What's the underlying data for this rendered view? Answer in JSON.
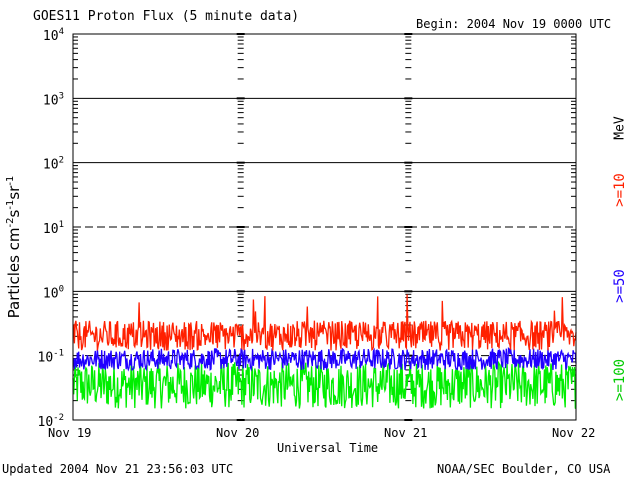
{
  "chart_data": {
    "type": "line",
    "title": "GOES11 Proton Flux (5 minute data)",
    "begin_label": "Begin: 2004 Nov 19 0000 UTC",
    "xlabel": "Universal Time",
    "ylabel_main": "Particles cm",
    "ylabel_sup1": "-2",
    "ylabel_mid1": "s",
    "ylabel_sup2": "-1",
    "ylabel_mid2": "sr",
    "ylabel_sup3": "-1",
    "x_ticks": [
      "Nov 19",
      "Nov 20",
      "Nov 21",
      "Nov 22"
    ],
    "xlim_days": [
      0,
      3
    ],
    "ylim": [
      0.01,
      10000
    ],
    "yscale": "log",
    "y_ticks": [
      {
        "base": "10",
        "exp": "-2"
      },
      {
        "base": "10",
        "exp": "-1"
      },
      {
        "base": "10",
        "exp": "0"
      },
      {
        "base": "10",
        "exp": "1"
      },
      {
        "base": "10",
        "exp": "2"
      },
      {
        "base": "10",
        "exp": "3"
      },
      {
        "base": "10",
        "exp": "4"
      }
    ],
    "unit": "MeV",
    "series": [
      {
        "name": ">=10",
        "color": "#ff2000",
        "level_min": 0.12,
        "level_max": 0.35,
        "peak": 0.9
      },
      {
        "name": ">=50",
        "color": "#2000ff",
        "level_min": 0.06,
        "level_max": 0.13,
        "peak": 0.16
      },
      {
        "name": ">=100",
        "color": "#00ee00",
        "level_min": 0.015,
        "level_max": 0.08,
        "peak": 0.09
      }
    ]
  },
  "footer": {
    "updated": "Updated 2004 Nov 21 23:56:03 UTC",
    "credit": "NOAA/SEC Boulder, CO USA"
  }
}
